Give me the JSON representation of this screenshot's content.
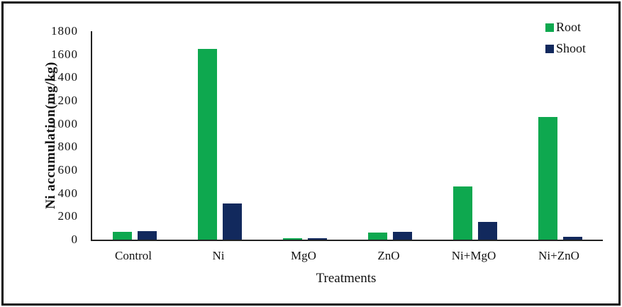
{
  "figure": {
    "background": "#ffffff",
    "frame_color": "#0d0d0d",
    "axis_color": "#222222",
    "text_color": "#111111"
  },
  "chart_data": {
    "type": "bar",
    "title": "",
    "xlabel": "Treatments",
    "ylabel": "Ni accumulation(mg/kg)",
    "categories": [
      "Control",
      "Ni",
      "MgO",
      "ZnO",
      "Ni+MgO",
      "Ni+ZnO"
    ],
    "series": [
      {
        "name": "Root",
        "color": "#0ea84f",
        "values": [
          65,
          1650,
          10,
          62,
          460,
          1060
        ]
      },
      {
        "name": "Shoot",
        "color": "#12295d",
        "values": [
          75,
          315,
          12,
          70,
          155,
          25
        ]
      }
    ],
    "ylim": [
      0,
      1800
    ],
    "yticks": [
      0,
      200,
      400,
      600,
      800,
      1000,
      1200,
      1400,
      1600,
      1800
    ],
    "grid": false,
    "legend_position": "top-right"
  }
}
